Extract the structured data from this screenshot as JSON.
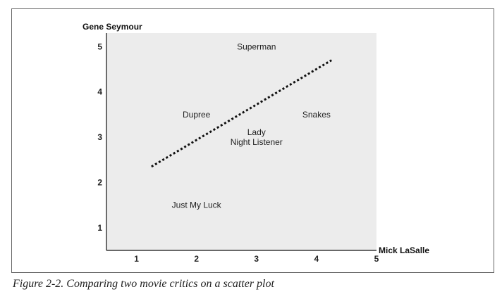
{
  "caption": "Figure 2-2. Comparing two movie critics on a scatter plot",
  "colors": {
    "plot_background": "#ececec",
    "axis": "#111111",
    "trend_line": "#111111"
  },
  "chart_data": {
    "type": "scatter",
    "title": "",
    "xlabel": "Mick LaSalle",
    "ylabel": "Gene Seymour",
    "xlim": [
      0.5,
      5
    ],
    "ylim": [
      0.5,
      5.3
    ],
    "xticks": [
      1,
      2,
      3,
      4,
      5
    ],
    "yticks": [
      1,
      2,
      3,
      4,
      5
    ],
    "grid": false,
    "points": [
      {
        "label": "Superman",
        "x": 3.0,
        "y": 5.0
      },
      {
        "label": "Dupree",
        "x": 2.0,
        "y": 3.5
      },
      {
        "label": "Snakes",
        "x": 4.0,
        "y": 3.5
      },
      {
        "label": "Lady\nNight Listener",
        "x": 3.0,
        "y": 3.0
      },
      {
        "label": "Just My Luck",
        "x": 2.0,
        "y": 1.5
      }
    ],
    "trend_line": {
      "style": "dotted",
      "x": [
        1.25,
        4.25
      ],
      "y": [
        2.35,
        4.7
      ]
    }
  }
}
